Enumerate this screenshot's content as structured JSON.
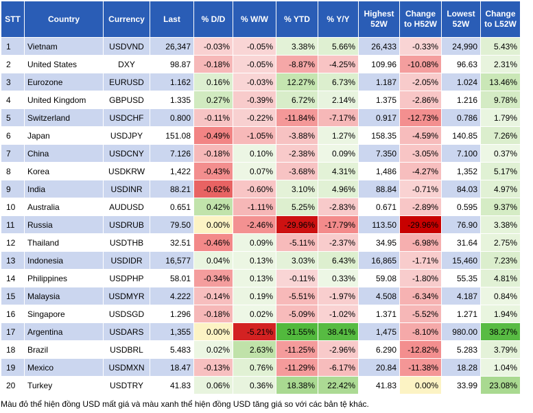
{
  "chart_data": {
    "type": "table",
    "columns": [
      "STT",
      "Country",
      "Currency",
      "Last",
      "% D/D",
      "% W/W",
      "% YTD",
      "% Y/Y",
      "Highest 52W",
      "Change to H52W",
      "Lowest 52W",
      "Change to L52W"
    ],
    "rows": [
      [
        "1",
        "Vietnam",
        "USDVND",
        "26,347",
        "-0.03%",
        "-0.05%",
        "3.38%",
        "5.66%",
        "26,433",
        "-0.33%",
        "24,990",
        "5.43%"
      ],
      [
        "2",
        "United States",
        "DXY",
        "98.87",
        "-0.18%",
        "-0.05%",
        "-8.87%",
        "-4.25%",
        "109.96",
        "-10.08%",
        "96.63",
        "2.31%"
      ],
      [
        "3",
        "Eurozone",
        "EURUSD",
        "1.162",
        "0.16%",
        "-0.03%",
        "12.27%",
        "6.73%",
        "1.187",
        "-2.05%",
        "1.024",
        "13.46%"
      ],
      [
        "4",
        "United Kingdom",
        "GBPUSD",
        "1.335",
        "0.27%",
        "-0.39%",
        "6.72%",
        "2.14%",
        "1.375",
        "-2.86%",
        "1.216",
        "9.78%"
      ],
      [
        "5",
        "Switzerland",
        "USDCHF",
        "0.800",
        "-0.11%",
        "-0.22%",
        "-11.84%",
        "-7.17%",
        "0.917",
        "-12.73%",
        "0.786",
        "1.79%"
      ],
      [
        "6",
        "Japan",
        "USDJPY",
        "151.08",
        "-0.49%",
        "-1.05%",
        "-3.88%",
        "1.27%",
        "158.35",
        "-4.59%",
        "140.85",
        "7.26%"
      ],
      [
        "7",
        "China",
        "USDCNY",
        "7.126",
        "-0.18%",
        "0.10%",
        "-2.38%",
        "0.09%",
        "7.350",
        "-3.05%",
        "7.100",
        "0.37%"
      ],
      [
        "8",
        "Korea",
        "USDKRW",
        "1,422",
        "-0.43%",
        "0.07%",
        "-3.68%",
        "4.31%",
        "1,486",
        "-4.27%",
        "1,352",
        "5.17%"
      ],
      [
        "9",
        "India",
        "USDINR",
        "88.21",
        "-0.62%",
        "-0.60%",
        "3.10%",
        "4.96%",
        "88.84",
        "-0.71%",
        "84.03",
        "4.97%"
      ],
      [
        "10",
        "Australia",
        "AUDUSD",
        "0.651",
        "0.42%",
        "-1.11%",
        "5.25%",
        "-2.83%",
        "0.671",
        "-2.89%",
        "0.595",
        "9.37%"
      ],
      [
        "11",
        "Russia",
        "USDRUB",
        "79.50",
        "0.00%",
        "-2.46%",
        "-29.96%",
        "-17.79%",
        "113.50",
        "-29.96%",
        "76.90",
        "3.38%"
      ],
      [
        "12",
        "Thailand",
        "USDTHB",
        "32.51",
        "-0.46%",
        "0.09%",
        "-5.11%",
        "-2.37%",
        "34.95",
        "-6.98%",
        "31.64",
        "2.75%"
      ],
      [
        "13",
        "Indonesia",
        "USDIDR",
        "16,577",
        "0.04%",
        "0.13%",
        "3.03%",
        "6.43%",
        "16,865",
        "-1.71%",
        "15,460",
        "7.23%"
      ],
      [
        "14",
        "Philippines",
        "USDPHP",
        "58.01",
        "-0.34%",
        "0.13%",
        "-0.11%",
        "0.33%",
        "59.08",
        "-1.80%",
        "55.35",
        "4.81%"
      ],
      [
        "15",
        "Malaysia",
        "USDMYR",
        "4.222",
        "-0.14%",
        "0.19%",
        "-5.51%",
        "-1.97%",
        "4.508",
        "-6.34%",
        "4.187",
        "0.84%"
      ],
      [
        "16",
        "Singapore",
        "USDSGD",
        "1.296",
        "-0.18%",
        "0.02%",
        "-5.09%",
        "-1.02%",
        "1.371",
        "-5.52%",
        "1.271",
        "1.94%"
      ],
      [
        "17",
        "Argentina",
        "USDARS",
        "1,355",
        "0.00%",
        "-5.21%",
        "31.55%",
        "38.41%",
        "1,475",
        "-8.10%",
        "980.00",
        "38.27%"
      ],
      [
        "18",
        "Brazil",
        "USDBRL",
        "5.483",
        "0.02%",
        "2.63%",
        "-11.25%",
        "-2.96%",
        "6.290",
        "-12.82%",
        "5.283",
        "3.79%"
      ],
      [
        "19",
        "Mexico",
        "USDMXN",
        "18.47",
        "-0.13%",
        "0.76%",
        "-11.29%",
        "-6.17%",
        "20.84",
        "-11.38%",
        "18.28",
        "1.04%"
      ],
      [
        "20",
        "Turkey",
        "USDTRY",
        "41.83",
        "0.06%",
        "0.36%",
        "18.38%",
        "22.42%",
        "41.83",
        "0.00%",
        "33.99",
        "23.08%"
      ]
    ],
    "colors": {
      "header_background": "#2a5db6",
      "header_text": "#ffffff",
      "row_band": "#cbd6ef",
      "negative_scale": "light to dark red",
      "positive_scale": "light to dark green"
    }
  },
  "caption": "Màu đỏ thể hiện đồng USD mất giá và màu xanh thể hiện đồng USD tăng giá so với các bản tệ khác."
}
